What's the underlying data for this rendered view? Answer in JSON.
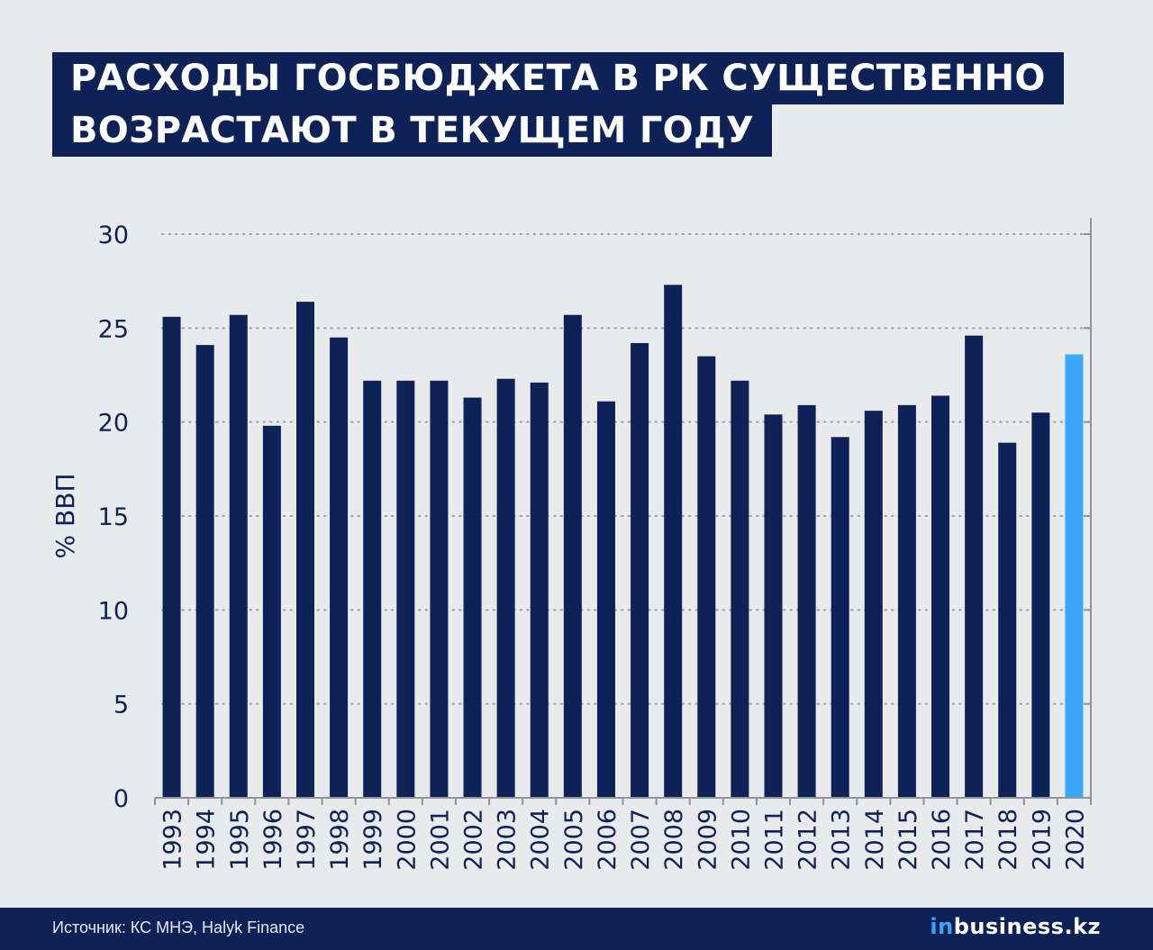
{
  "title": {
    "line1": "РАСХОДЫ ГОСБЮДЖЕТА В РК СУЩЕСТВЕННО",
    "line2": "ВОЗРАСТАЮТ В ТЕКУЩЕМ ГОДУ"
  },
  "chart_data": {
    "type": "bar",
    "ylabel": "% ВВП",
    "xlabel": "",
    "ylim": [
      0,
      30
    ],
    "yticks": [
      0,
      5,
      10,
      15,
      20,
      25,
      30
    ],
    "grid": "horizontal-dotted",
    "categories": [
      "1993",
      "1994",
      "1995",
      "1996",
      "1997",
      "1998",
      "1999",
      "2000",
      "2001",
      "2002",
      "2003",
      "2004",
      "2005",
      "2006",
      "2007",
      "2008",
      "2009",
      "2010",
      "2011",
      "2012",
      "2013",
      "2014",
      "2015",
      "2016",
      "2017",
      "2018",
      "2019",
      "2020"
    ],
    "values": [
      25.6,
      24.1,
      25.7,
      19.8,
      26.4,
      24.5,
      22.2,
      22.2,
      22.2,
      21.3,
      22.3,
      22.1,
      25.7,
      21.1,
      24.2,
      27.3,
      23.5,
      22.2,
      20.4,
      20.9,
      19.2,
      20.6,
      20.9,
      21.4,
      24.6,
      18.9,
      20.5,
      23.6
    ],
    "colors": {
      "default": "#0e2257",
      "highlight": "#3aa8f8",
      "highlight_category": "2020"
    }
  },
  "footer": {
    "source": "Источник: КС МНЭ, Halyk Finance",
    "logo_in": "in",
    "logo_rest": "business.kz"
  }
}
